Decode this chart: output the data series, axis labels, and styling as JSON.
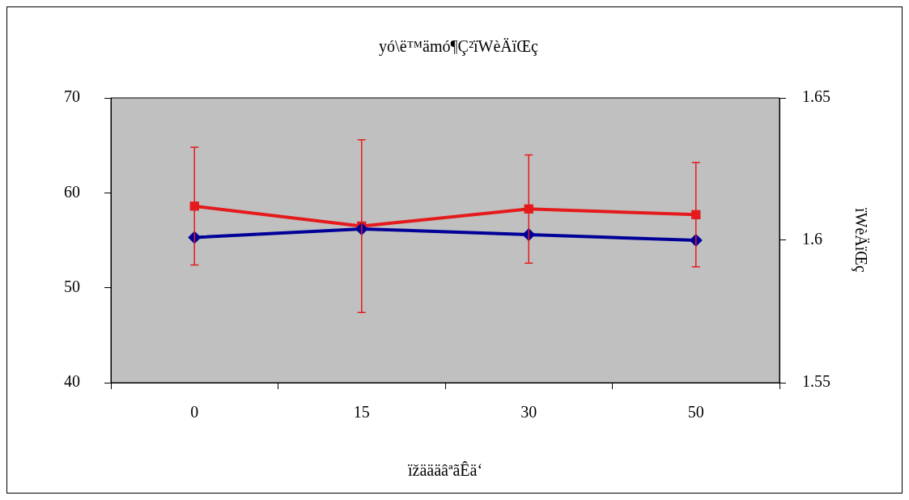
{
  "chart_data": {
    "type": "line",
    "title": "yó\\ë™ämó¶Ç²ïWèÄïŒç",
    "xlabel": "ïžäääâªãÊä‘",
    "y2label": "ïWèÄïŒç",
    "categories": [
      "0",
      "15",
      "30",
      "50"
    ],
    "series": [
      {
        "color": "#e41a1c",
        "values": [
          58.6,
          56.5,
          58.3,
          57.7
        ],
        "errors": [
          6.2,
          9.1,
          5.7,
          5.5
        ],
        "marker": "square"
      },
      {
        "color": "#000099",
        "values": [
          1.601,
          1.604,
          1.602,
          1.6
        ],
        "axis": "y2",
        "marker": "diamond"
      }
    ],
    "ylim": [
      40,
      70
    ],
    "yticks": [
      40,
      50,
      60,
      70
    ],
    "y2lim": [
      1.55,
      1.65
    ],
    "y2ticks": [
      1.55,
      1.6,
      1.65
    ],
    "grid": false,
    "legend": false
  }
}
